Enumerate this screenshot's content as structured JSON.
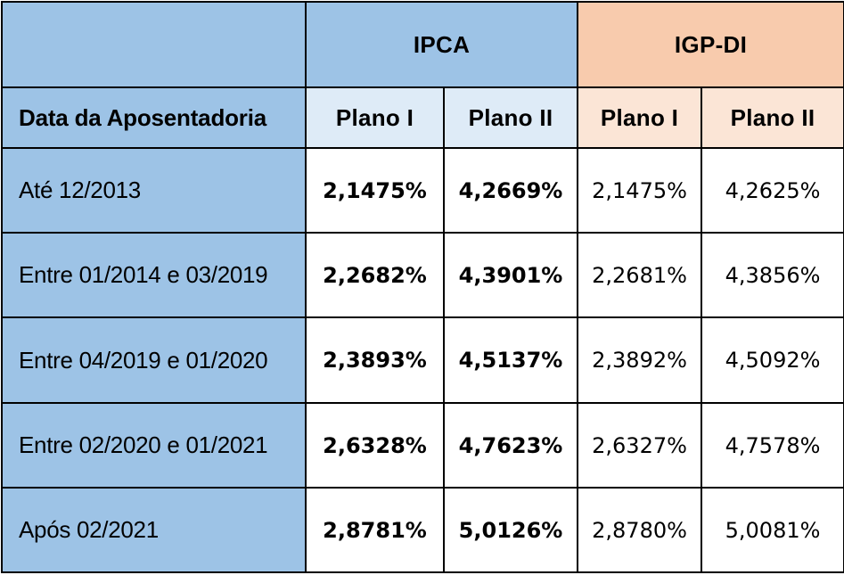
{
  "table": {
    "groups": {
      "ipca": "IPCA",
      "igpdi": "IGP-DI"
    },
    "header": {
      "date_col": "Data da Aposentadoria",
      "ipca_plano1": "Plano I",
      "ipca_plano2": "Plano II",
      "igp_plano1": "Plano I",
      "igp_plano2": "Plano II"
    },
    "rows": [
      {
        "label": "Até 12/2013",
        "ipca_plano1": "2,1475%",
        "ipca_plano2": "4,2669%",
        "igp_plano1": "2,1475%",
        "igp_plano2": "4,2625%"
      },
      {
        "label": "Entre 01/2014 e 03/2019",
        "ipca_plano1": "2,2682%",
        "ipca_plano2": "4,3901%",
        "igp_plano1": "2,2681%",
        "igp_plano2": "4,3856%"
      },
      {
        "label": "Entre 04/2019 e 01/2020",
        "ipca_plano1": "2,3893%",
        "ipca_plano2": "4,5137%",
        "igp_plano1": "2,3892%",
        "igp_plano2": "4,5092%"
      },
      {
        "label": "Entre 02/2020 e 01/2021",
        "ipca_plano1": "2,6328%",
        "ipca_plano2": "4,7623%",
        "igp_plano1": "2,6327%",
        "igp_plano2": "4,7578%"
      },
      {
        "label": "Após 02/2021",
        "ipca_plano1": "2,8781%",
        "ipca_plano2": "5,0126%",
        "igp_plano1": "2,8780%",
        "igp_plano2": "5,0081%"
      }
    ]
  },
  "colors": {
    "label_column": "#9dc3e6",
    "ipca_header": "#9dc3e6",
    "ipca_subheader": "#deebf7",
    "igpdi_header": "#f8cbad",
    "igpdi_subheader": "#fbe5d6",
    "border": "#000000"
  }
}
